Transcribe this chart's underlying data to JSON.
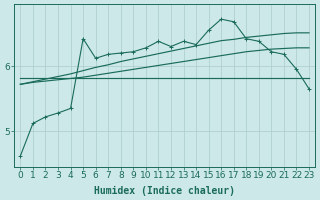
{
  "background_color": "#cce8e8",
  "grid_color": "#aacccc",
  "line_color": "#1a6b5a",
  "xlabel": "Humidex (Indice chaleur)",
  "xlabel_fontsize": 7,
  "tick_fontsize": 6.5,
  "yticks": [
    5,
    6
  ],
  "xlim": [
    -0.5,
    23.5
  ],
  "ylim": [
    4.45,
    6.95
  ],
  "x_indices": [
    0,
    1,
    2,
    3,
    4,
    5,
    6,
    7,
    8,
    9,
    10,
    11,
    12,
    13,
    14,
    15,
    16,
    17,
    18,
    19,
    20,
    21,
    22,
    23
  ],
  "line_zigzag": [
    4.62,
    5.12,
    5.22,
    5.28,
    5.35,
    6.42,
    6.12,
    6.18,
    6.2,
    6.22,
    6.28,
    6.38,
    6.3,
    6.38,
    6.33,
    6.55,
    6.72,
    6.68,
    6.42,
    6.38,
    6.22,
    6.18,
    5.95,
    5.65
  ],
  "line_flat": [
    5.82,
    5.82,
    5.82,
    5.82,
    5.82,
    5.82,
    5.82,
    5.82,
    5.82,
    5.82,
    5.82,
    5.82,
    5.82,
    5.82,
    5.82,
    5.82,
    5.82,
    5.82,
    5.82,
    5.82,
    5.82,
    5.82,
    5.82,
    5.82
  ],
  "line_rise1": [
    5.72,
    5.75,
    5.77,
    5.79,
    5.81,
    5.83,
    5.86,
    5.89,
    5.92,
    5.95,
    5.98,
    6.01,
    6.04,
    6.07,
    6.1,
    6.13,
    6.16,
    6.19,
    6.22,
    6.24,
    6.26,
    6.27,
    6.28,
    6.28
  ],
  "line_rise2": [
    5.72,
    5.76,
    5.8,
    5.84,
    5.88,
    5.93,
    5.98,
    6.02,
    6.07,
    6.11,
    6.15,
    6.19,
    6.23,
    6.27,
    6.31,
    6.35,
    6.39,
    6.41,
    6.44,
    6.46,
    6.48,
    6.5,
    6.51,
    6.51
  ]
}
